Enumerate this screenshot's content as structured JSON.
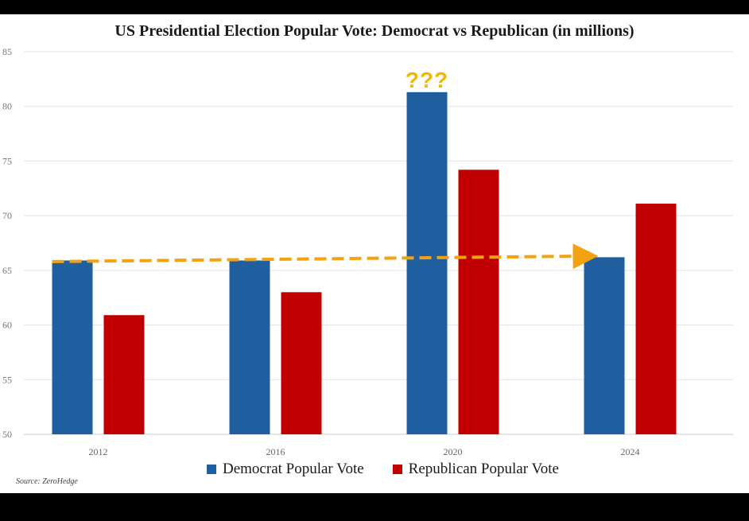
{
  "chart_data": {
    "type": "bar",
    "title": "US Presidential Election Popular Vote: Democrat vs Republican (in millions)",
    "categories": [
      "2012",
      "2016",
      "2020",
      "2024"
    ],
    "series": [
      {
        "name": "Democrat Popular Vote",
        "color": "#1f5fa0",
        "values": [
          65.9,
          65.9,
          81.3,
          66.2
        ]
      },
      {
        "name": "Republican Popular Vote",
        "color": "#c00000",
        "values": [
          60.9,
          63.0,
          74.2,
          71.1
        ]
      }
    ],
    "ylim": [
      50,
      85
    ],
    "yticks": [
      50,
      55,
      60,
      65,
      70,
      75,
      80,
      85
    ],
    "xlabel": "",
    "ylabel": "",
    "grid": true,
    "legend": "bottom",
    "annotations": {
      "question_marks": {
        "text": "???",
        "category": "2020",
        "color": "#f2b705"
      },
      "trend_arrow": {
        "from": {
          "category": "2012",
          "value": 65.8
        },
        "to": {
          "category": "2024",
          "value": 66.3
        },
        "color": "#f2a30f"
      }
    }
  },
  "source": "Source: ZeroHedge"
}
